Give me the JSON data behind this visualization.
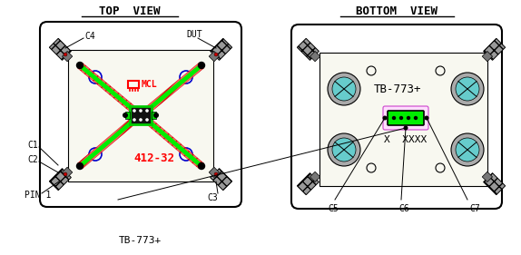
{
  "bg_color": "#ffffff",
  "title_top_view": "TOP  VIEW",
  "title_bottom_view": "BOTTOM  VIEW",
  "bottom_label": "TB-773+",
  "fig_width": 5.74,
  "fig_height": 2.81,
  "dpi": 100
}
